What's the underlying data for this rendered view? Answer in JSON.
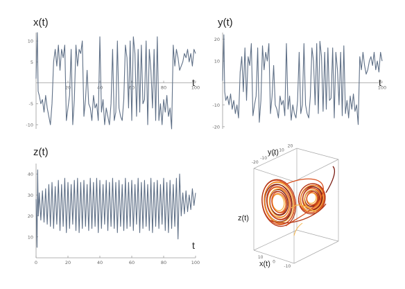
{
  "chart_data": [
    {
      "type": "line",
      "title": "x(t)",
      "xlabel": "t",
      "ylabel": "",
      "xlim": [
        0,
        100
      ],
      "ylim": [
        -11,
        12
      ],
      "xticks": [
        "20",
        "40",
        "60",
        "80",
        "100"
      ],
      "yticks": [
        "10",
        "5",
        "-5",
        "-10"
      ],
      "series": [
        {
          "color": "#5e6f86",
          "x": [
            0.0,
            0.8,
            1.3,
            2.0,
            3.0,
            4.0,
            5.0,
            6.0,
            7.0,
            8.0,
            9.0,
            10.0,
            11.0,
            12.0,
            13.0,
            14.0,
            15.0,
            16.0,
            17.0,
            18.0,
            19.0,
            20.0,
            21.0,
            22.0,
            23.0,
            24.0,
            25.0,
            26.0,
            27.0,
            28.0,
            29.0,
            30.0,
            31.0,
            32.0,
            33.0,
            34.0,
            35.0,
            36.0,
            37.0,
            38.0,
            39.0,
            40.0,
            41.0,
            42.0,
            43.0,
            44.0,
            45.0,
            46.0,
            47.0,
            48.0,
            49.0,
            50.0,
            51.0,
            52.0,
            53.0,
            54.0,
            55.0,
            56.0,
            57.0,
            58.0,
            59.0,
            60.0,
            61.0,
            62.0,
            63.0,
            64.0,
            65.0,
            66.0,
            67.0,
            68.0,
            69.0,
            70.0,
            71.0,
            72.0,
            73.0,
            74.0,
            75.0,
            76.0,
            77.0,
            78.0,
            79.0,
            80.0,
            81.0,
            82.0,
            83.0,
            84.0,
            85.0,
            86.0,
            87.0,
            88.0,
            89.0,
            90.0,
            91.0,
            92.0,
            93.0,
            94.0,
            95.0,
            96.0,
            97.0,
            98.0,
            99.0,
            100.0
          ],
          "y": [
            1,
            12,
            -2,
            -3,
            -5,
            -4,
            -7,
            -3,
            -6,
            -8,
            -10,
            -5,
            5,
            8,
            4,
            9,
            3,
            8,
            6,
            9,
            -9,
            -6,
            -3,
            8,
            -10,
            -4,
            9,
            4,
            8,
            7,
            10,
            -8,
            -4,
            3,
            -5,
            -6,
            -9,
            -3,
            -6,
            -5,
            -9,
            11,
            -7,
            -4,
            -10,
            -6,
            -8,
            -10,
            -5,
            8,
            -9,
            -7,
            10,
            -6,
            -8,
            -9,
            -4,
            9,
            6,
            -6,
            10,
            -9,
            11,
            7,
            -8,
            8,
            -7,
            9,
            -5,
            -4,
            10,
            -10,
            8,
            3,
            -6,
            8,
            -9,
            11,
            -9,
            -5,
            -10,
            -4,
            -7,
            -3,
            -8,
            -6,
            -11,
            9,
            4,
            8,
            6,
            3,
            4,
            5,
            7,
            6,
            8,
            5,
            7,
            4,
            8,
            7
          ]
        }
      ]
    },
    {
      "type": "line",
      "title": "y(t)",
      "xlabel": "t",
      "ylabel": "",
      "xlim": [
        0,
        100
      ],
      "ylim": [
        -21,
        23
      ],
      "xticks": [
        "100"
      ],
      "yticks": [
        "20",
        "10",
        "-10",
        "-20"
      ],
      "series": [
        {
          "color": "#5e6f86",
          "x": [
            0.0,
            0.8,
            1.3,
            2.0,
            3.0,
            4.0,
            5.0,
            6.0,
            7.0,
            8.0,
            9.0,
            10.0,
            11.0,
            12.0,
            13.0,
            14.0,
            15.0,
            16.0,
            17.0,
            18.0,
            19.0,
            20.0,
            21.0,
            22.0,
            23.0,
            24.0,
            25.0,
            26.0,
            27.0,
            28.0,
            29.0,
            30.0,
            31.0,
            32.0,
            33.0,
            34.0,
            35.0,
            36.0,
            37.0,
            38.0,
            39.0,
            40.0,
            41.0,
            42.0,
            43.0,
            44.0,
            45.0,
            46.0,
            47.0,
            48.0,
            49.0,
            50.0,
            51.0,
            52.0,
            53.0,
            54.0,
            55.0,
            56.0,
            57.0,
            58.0,
            59.0,
            60.0,
            61.0,
            62.0,
            63.0,
            64.0,
            65.0,
            66.0,
            67.0,
            68.0,
            69.0,
            70.0,
            71.0,
            72.0,
            73.0,
            74.0,
            75.0,
            76.0,
            77.0,
            78.0,
            79.0,
            80.0,
            81.0,
            82.0,
            83.0,
            84.0,
            85.0,
            86.0,
            87.0,
            88.0,
            89.0,
            90.0,
            91.0,
            92.0,
            93.0,
            94.0,
            95.0,
            96.0,
            97.0,
            98.0,
            99.0,
            100.0
          ],
          "y": [
            1,
            22,
            -4,
            -8,
            -6,
            -10,
            -5,
            -12,
            -8,
            -14,
            -10,
            -16,
            5,
            12,
            -4,
            16,
            -8,
            12,
            8,
            18,
            -15,
            -10,
            -6,
            16,
            -18,
            -8,
            17,
            6,
            14,
            10,
            18,
            -14,
            -6,
            8,
            -10,
            -12,
            -16,
            -6,
            -10,
            -8,
            -15,
            18,
            -12,
            -6,
            -17,
            -10,
            -14,
            -16,
            -8,
            14,
            -14,
            -10,
            18,
            -10,
            -14,
            -16,
            -6,
            16,
            10,
            -10,
            18,
            -14,
            19,
            12,
            -13,
            14,
            -12,
            16,
            -8,
            -7,
            16,
            -16,
            14,
            6,
            -10,
            14,
            -15,
            17,
            -14,
            -8,
            -16,
            -6,
            -12,
            -5,
            -13,
            -10,
            -19,
            12,
            6,
            14,
            8,
            4,
            6,
            10,
            12,
            8,
            14,
            6,
            10,
            5,
            14,
            10
          ]
        }
      ]
    },
    {
      "type": "line",
      "title": "z(t)",
      "xlabel": "t",
      "ylabel": "",
      "xlim": [
        0,
        100
      ],
      "ylim": [
        0,
        45
      ],
      "xticks": [
        "0",
        "20",
        "40",
        "60",
        "80",
        "100"
      ],
      "yticks": [
        "40",
        "30",
        "20",
        "10"
      ],
      "series": [
        {
          "color": "#5e6f86",
          "x": [
            0.0,
            0.6,
            1.0,
            1.4,
            2.0,
            3.0,
            4.0,
            5.0,
            6.0,
            7.0,
            8.0,
            9.0,
            10.0,
            11.0,
            12.0,
            13.0,
            14.0,
            15.0,
            16.0,
            17.0,
            18.0,
            19.0,
            20.0,
            21.0,
            22.0,
            23.0,
            24.0,
            25.0,
            26.0,
            27.0,
            28.0,
            29.0,
            30.0,
            31.0,
            32.0,
            33.0,
            34.0,
            35.0,
            36.0,
            37.0,
            38.0,
            39.0,
            40.0,
            41.0,
            42.0,
            43.0,
            44.0,
            45.0,
            46.0,
            47.0,
            48.0,
            49.0,
            50.0,
            51.0,
            52.0,
            53.0,
            54.0,
            55.0,
            56.0,
            57.0,
            58.0,
            59.0,
            60.0,
            61.0,
            62.0,
            63.0,
            64.0,
            65.0,
            66.0,
            67.0,
            68.0,
            69.0,
            70.0,
            71.0,
            72.0,
            73.0,
            74.0,
            75.0,
            76.0,
            77.0,
            78.0,
            79.0,
            80.0,
            81.0,
            82.0,
            83.0,
            84.0,
            85.0,
            86.0,
            87.0,
            88.0,
            89.0,
            90.0,
            91.0,
            92.0,
            93.0,
            94.0,
            95.0,
            96.0,
            97.0,
            98.0,
            99.0,
            100.0
          ],
          "y": [
            28,
            5,
            42,
            20,
            31,
            18,
            32,
            17,
            33,
            16,
            35,
            15,
            36,
            14,
            34,
            16,
            37,
            13,
            35,
            15,
            38,
            12,
            36,
            14,
            35,
            16,
            37,
            13,
            38,
            12,
            36,
            14,
            37,
            15,
            35,
            13,
            38,
            14,
            36,
            15,
            38,
            12,
            37,
            14,
            35,
            16,
            37,
            13,
            36,
            15,
            38,
            14,
            36,
            12,
            37,
            15,
            35,
            13,
            38,
            14,
            36,
            15,
            37,
            13,
            35,
            16,
            38,
            12,
            36,
            14,
            37,
            15,
            35,
            13,
            38,
            12,
            36,
            15,
            37,
            14,
            35,
            16,
            38,
            13,
            36,
            12,
            37,
            14,
            35,
            15,
            38,
            9,
            40,
            20,
            31,
            21,
            32,
            22,
            30,
            23,
            33,
            25,
            31
          ]
        }
      ]
    },
    {
      "type": "line",
      "subtype": "3d-phase-portrait",
      "title": "",
      "axes": {
        "x": {
          "label": "x(t)",
          "ticks": [
            "10",
            "0",
            "-10"
          ]
        },
        "y": {
          "label": "y(t)",
          "ticks": [
            "20",
            "10",
            "0",
            "-10",
            "-20"
          ]
        },
        "z": {
          "label": "z(t)"
        }
      },
      "colors": [
        "#f6b347",
        "#ee7a22",
        "#d9501e",
        "#b3381a",
        "#7a1a10"
      ]
    }
  ]
}
